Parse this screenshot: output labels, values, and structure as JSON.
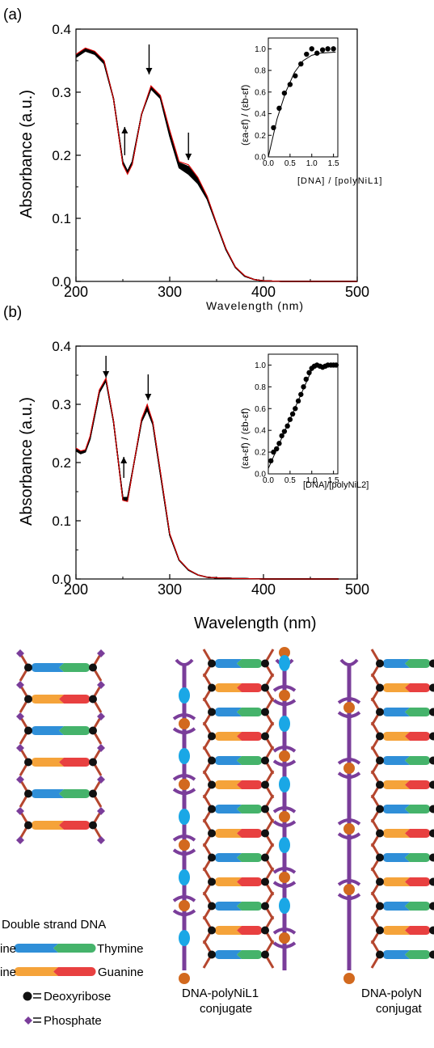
{
  "chart_data": [
    {
      "panel": "(a)",
      "type": "line",
      "xlabel": "Wavelength (nm)",
      "ylabel": "Absorbance (a.u.)",
      "xlim": [
        200,
        500
      ],
      "ylim": [
        0,
        0.4
      ],
      "xticks": [
        "200",
        "300",
        "400",
        "500"
      ],
      "yticks": [
        "0.0",
        "0.1",
        "0.2",
        "0.3",
        "0.4"
      ],
      "x": [
        200,
        210,
        220,
        230,
        240,
        250,
        255,
        260,
        270,
        280,
        290,
        300,
        310,
        320,
        330,
        340,
        350,
        360,
        370,
        380,
        390,
        400,
        420,
        450,
        500
      ],
      "series": [
        {
          "values": [
            0.355,
            0.365,
            0.36,
            0.345,
            0.29,
            0.19,
            0.175,
            0.19,
            0.265,
            0.305,
            0.29,
            0.23,
            0.18,
            0.17,
            0.155,
            0.13,
            0.09,
            0.05,
            0.022,
            0.008,
            0.003,
            0.001,
            0.0,
            0.0,
            0.0
          ]
        },
        {
          "color": "#e00000",
          "values": [
            0.36,
            0.37,
            0.365,
            0.35,
            0.29,
            0.185,
            0.17,
            0.185,
            0.265,
            0.31,
            0.295,
            0.24,
            0.19,
            0.185,
            0.165,
            0.135,
            0.092,
            0.052,
            0.023,
            0.009,
            0.003,
            0.001,
            0.0,
            0.0,
            0.0
          ]
        }
      ],
      "arrows": [
        {
          "x": 278,
          "dir": "down"
        },
        {
          "x": 252,
          "dir": "up"
        },
        {
          "x": 320,
          "dir": "down"
        }
      ],
      "inset": {
        "xlabel": "[DNA] / [polyNiL1]",
        "ylabel": "(εa-εf) / (εb-εf)",
        "xlim": [
          0,
          1.6
        ],
        "ylim": [
          0,
          1.1
        ],
        "xticks": [
          "0.0",
          "0.5",
          "1.0",
          "1.5"
        ],
        "yticks": [
          "0.0",
          "0.2",
          "0.4",
          "0.6",
          "0.8",
          "1.0"
        ],
        "points": [
          [
            0.12,
            0.27
          ],
          [
            0.25,
            0.45
          ],
          [
            0.37,
            0.59
          ],
          [
            0.5,
            0.67
          ],
          [
            0.62,
            0.75
          ],
          [
            0.75,
            0.86
          ],
          [
            0.88,
            0.95
          ],
          [
            1.0,
            1.0
          ],
          [
            1.12,
            0.96
          ],
          [
            1.25,
            0.99
          ],
          [
            1.37,
            1.0
          ],
          [
            1.5,
            1.0
          ]
        ],
        "fit": [
          [
            0.0,
            0.0
          ],
          [
            0.2,
            0.35
          ],
          [
            0.4,
            0.6
          ],
          [
            0.6,
            0.78
          ],
          [
            0.8,
            0.89
          ],
          [
            1.0,
            0.94
          ],
          [
            1.2,
            0.96
          ],
          [
            1.55,
            0.97
          ]
        ]
      }
    },
    {
      "panel": "(b)",
      "type": "line",
      "xlabel": "Wavelength (nm)",
      "ylabel": "Absorbance (a.u.)",
      "xlim": [
        200,
        500
      ],
      "ylim": [
        0,
        0.4
      ],
      "xticks": [
        "200",
        "300",
        "400",
        "500"
      ],
      "yticks": [
        "0.0",
        "0.1",
        "0.2",
        "0.3",
        "0.4"
      ],
      "x": [
        200,
        205,
        210,
        215,
        220,
        225,
        232,
        240,
        250,
        255,
        262,
        270,
        276,
        282,
        290,
        300,
        310,
        320,
        330,
        340,
        350,
        370,
        400,
        450,
        480
      ],
      "series": [
        {
          "values": [
            0.22,
            0.215,
            0.218,
            0.24,
            0.28,
            0.32,
            0.34,
            0.27,
            0.14,
            0.14,
            0.2,
            0.27,
            0.29,
            0.265,
            0.18,
            0.075,
            0.032,
            0.015,
            0.007,
            0.003,
            0.002,
            0.001,
            0.0,
            0.0,
            0.0
          ]
        },
        {
          "color": "#e00000",
          "values": [
            0.225,
            0.22,
            0.222,
            0.245,
            0.285,
            0.325,
            0.345,
            0.272,
            0.135,
            0.133,
            0.2,
            0.275,
            0.3,
            0.27,
            0.185,
            0.078,
            0.033,
            0.016,
            0.007,
            0.003,
            0.002,
            0.001,
            0.0,
            0.0,
            0.0
          ]
        }
      ],
      "arrows": [
        {
          "x": 232,
          "dir": "down"
        },
        {
          "x": 251,
          "dir": "up"
        },
        {
          "x": 277,
          "dir": "down"
        }
      ],
      "inset": {
        "xlabel": "[DNA]/[polyNiL2]",
        "ylabel": "(εa-εf) / (εb-εf)",
        "xlim": [
          0,
          1.6
        ],
        "ylim": [
          0,
          1.1
        ],
        "xticks": [
          "0.0",
          "0.5",
          "1.0",
          "1.5"
        ],
        "yticks": [
          "0.0",
          "0.2",
          "0.4",
          "0.6",
          "0.8",
          "1.0"
        ],
        "points": [
          [
            0.06,
            0.12
          ],
          [
            0.12,
            0.2
          ],
          [
            0.19,
            0.23
          ],
          [
            0.25,
            0.28
          ],
          [
            0.31,
            0.35
          ],
          [
            0.37,
            0.39
          ],
          [
            0.44,
            0.44
          ],
          [
            0.5,
            0.5
          ],
          [
            0.56,
            0.55
          ],
          [
            0.62,
            0.6
          ],
          [
            0.69,
            0.67
          ],
          [
            0.75,
            0.73
          ],
          [
            0.81,
            0.8
          ],
          [
            0.87,
            0.87
          ],
          [
            0.94,
            0.93
          ],
          [
            1.0,
            0.97
          ],
          [
            1.06,
            0.99
          ],
          [
            1.12,
            1.0
          ],
          [
            1.19,
            0.99
          ],
          [
            1.25,
            0.98
          ],
          [
            1.31,
            0.99
          ],
          [
            1.37,
            1.0
          ],
          [
            1.44,
            1.0
          ],
          [
            1.5,
            1.0
          ],
          [
            1.56,
            1.0
          ]
        ],
        "fit": [
          [
            0.0,
            0.05
          ],
          [
            1.05,
            1.0
          ],
          [
            1.56,
            1.0
          ]
        ]
      }
    }
  ],
  "scheme": {
    "dna_caption": "Double strand DNA",
    "conj1_caption_line1": "DNA-polyNiL1",
    "conj1_caption_line2": "conjugate",
    "conj2_caption_line1": "DNA-polyN",
    "conj2_caption_line2": "conjugat",
    "legend": {
      "thymine_left": "ine",
      "thymine": "Thymine",
      "guanine_left": "ine",
      "guanine": "Guanine",
      "deoxyribose": "Deoxyribose",
      "phosphate": "Phosphate"
    },
    "colors": {
      "blue": "#2f8fd8",
      "green": "#45b36b",
      "orange": "#f5a33a",
      "red": "#e84040",
      "backbone": "#b5462e",
      "purple": "#7a3d9a",
      "cyan": "#1aa7e6",
      "nickel": "#d2691e"
    }
  }
}
